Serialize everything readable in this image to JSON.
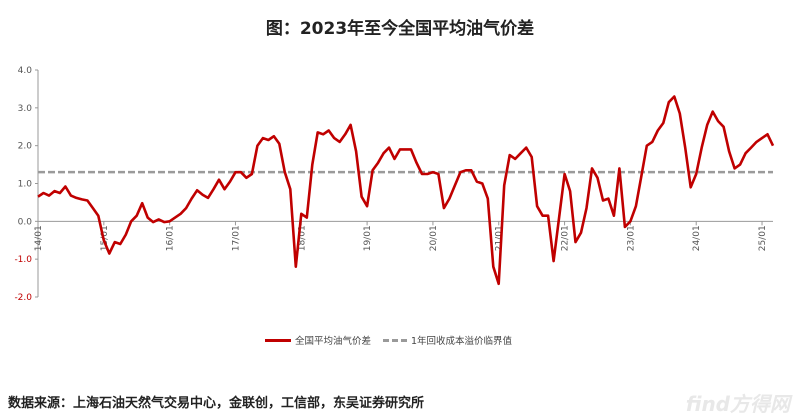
{
  "title": "图：2023年至今全国平均油气价差",
  "source": "数据来源：上海石油天然气交易中心，金联创，工信部，东吴证券研究所",
  "watermark": "find方得网",
  "legend": {
    "series": "全国平均油气价差",
    "threshold": "1年回收成本溢价临界值"
  },
  "colors": {
    "series": "#c00000",
    "threshold": "#9a9a9a",
    "axis": "#999999",
    "negative_tick": "#c00000"
  },
  "chart_data": {
    "type": "line",
    "ylim": [
      -2.0,
      4.0
    ],
    "yticks": [
      "4.0",
      "3.0",
      "2.0",
      "1.0",
      "0.0",
      "-1.0",
      "-2.0"
    ],
    "xticks": [
      "14/01",
      "15/01",
      "16/01",
      "17/01",
      "18/01",
      "19/01",
      "20/01",
      "21/01",
      "22/01",
      "23/01",
      "24/01",
      "25/01"
    ],
    "x_start": "2014-01",
    "threshold": 1.3,
    "series": [
      {
        "name": "全国平均油气价差",
        "values": [
          0.65,
          0.75,
          0.68,
          0.8,
          0.75,
          0.92,
          0.68,
          0.62,
          0.58,
          0.55,
          0.35,
          0.15,
          -0.5,
          -0.85,
          -0.55,
          -0.6,
          -0.35,
          0.0,
          0.15,
          0.48,
          0.1,
          -0.02,
          0.05,
          -0.02,
          0.0,
          0.1,
          0.2,
          0.35,
          0.6,
          0.82,
          0.7,
          0.62,
          0.85,
          1.1,
          0.85,
          1.05,
          1.3,
          1.3,
          1.15,
          1.25,
          2.0,
          2.2,
          2.15,
          2.25,
          2.05,
          1.3,
          0.85,
          -1.2,
          0.2,
          0.1,
          1.5,
          2.35,
          2.3,
          2.4,
          2.2,
          2.1,
          2.3,
          2.55,
          1.85,
          0.65,
          0.4,
          1.35,
          1.55,
          1.8,
          1.95,
          1.65,
          1.9,
          1.9,
          1.9,
          1.55,
          1.25,
          1.25,
          1.3,
          1.25,
          0.35,
          0.6,
          0.95,
          1.3,
          1.35,
          1.35,
          1.05,
          1.0,
          0.6,
          -1.2,
          -1.65,
          0.95,
          1.75,
          1.65,
          1.8,
          1.95,
          1.7,
          0.4,
          0.15,
          0.15,
          -1.05,
          0.1,
          1.25,
          0.8,
          -0.55,
          -0.3,
          0.35,
          1.4,
          1.15,
          0.55,
          0.6,
          0.15,
          1.4,
          -0.15,
          0.0,
          0.4,
          1.2,
          2.0,
          2.1,
          2.4,
          2.6,
          3.15,
          3.3,
          2.85,
          1.95,
          0.9,
          1.25,
          1.95,
          2.55,
          2.9,
          2.65,
          2.5,
          1.85,
          1.4,
          1.5,
          1.8,
          1.95,
          2.1,
          2.2,
          2.3,
          2.0
        ]
      }
    ]
  }
}
